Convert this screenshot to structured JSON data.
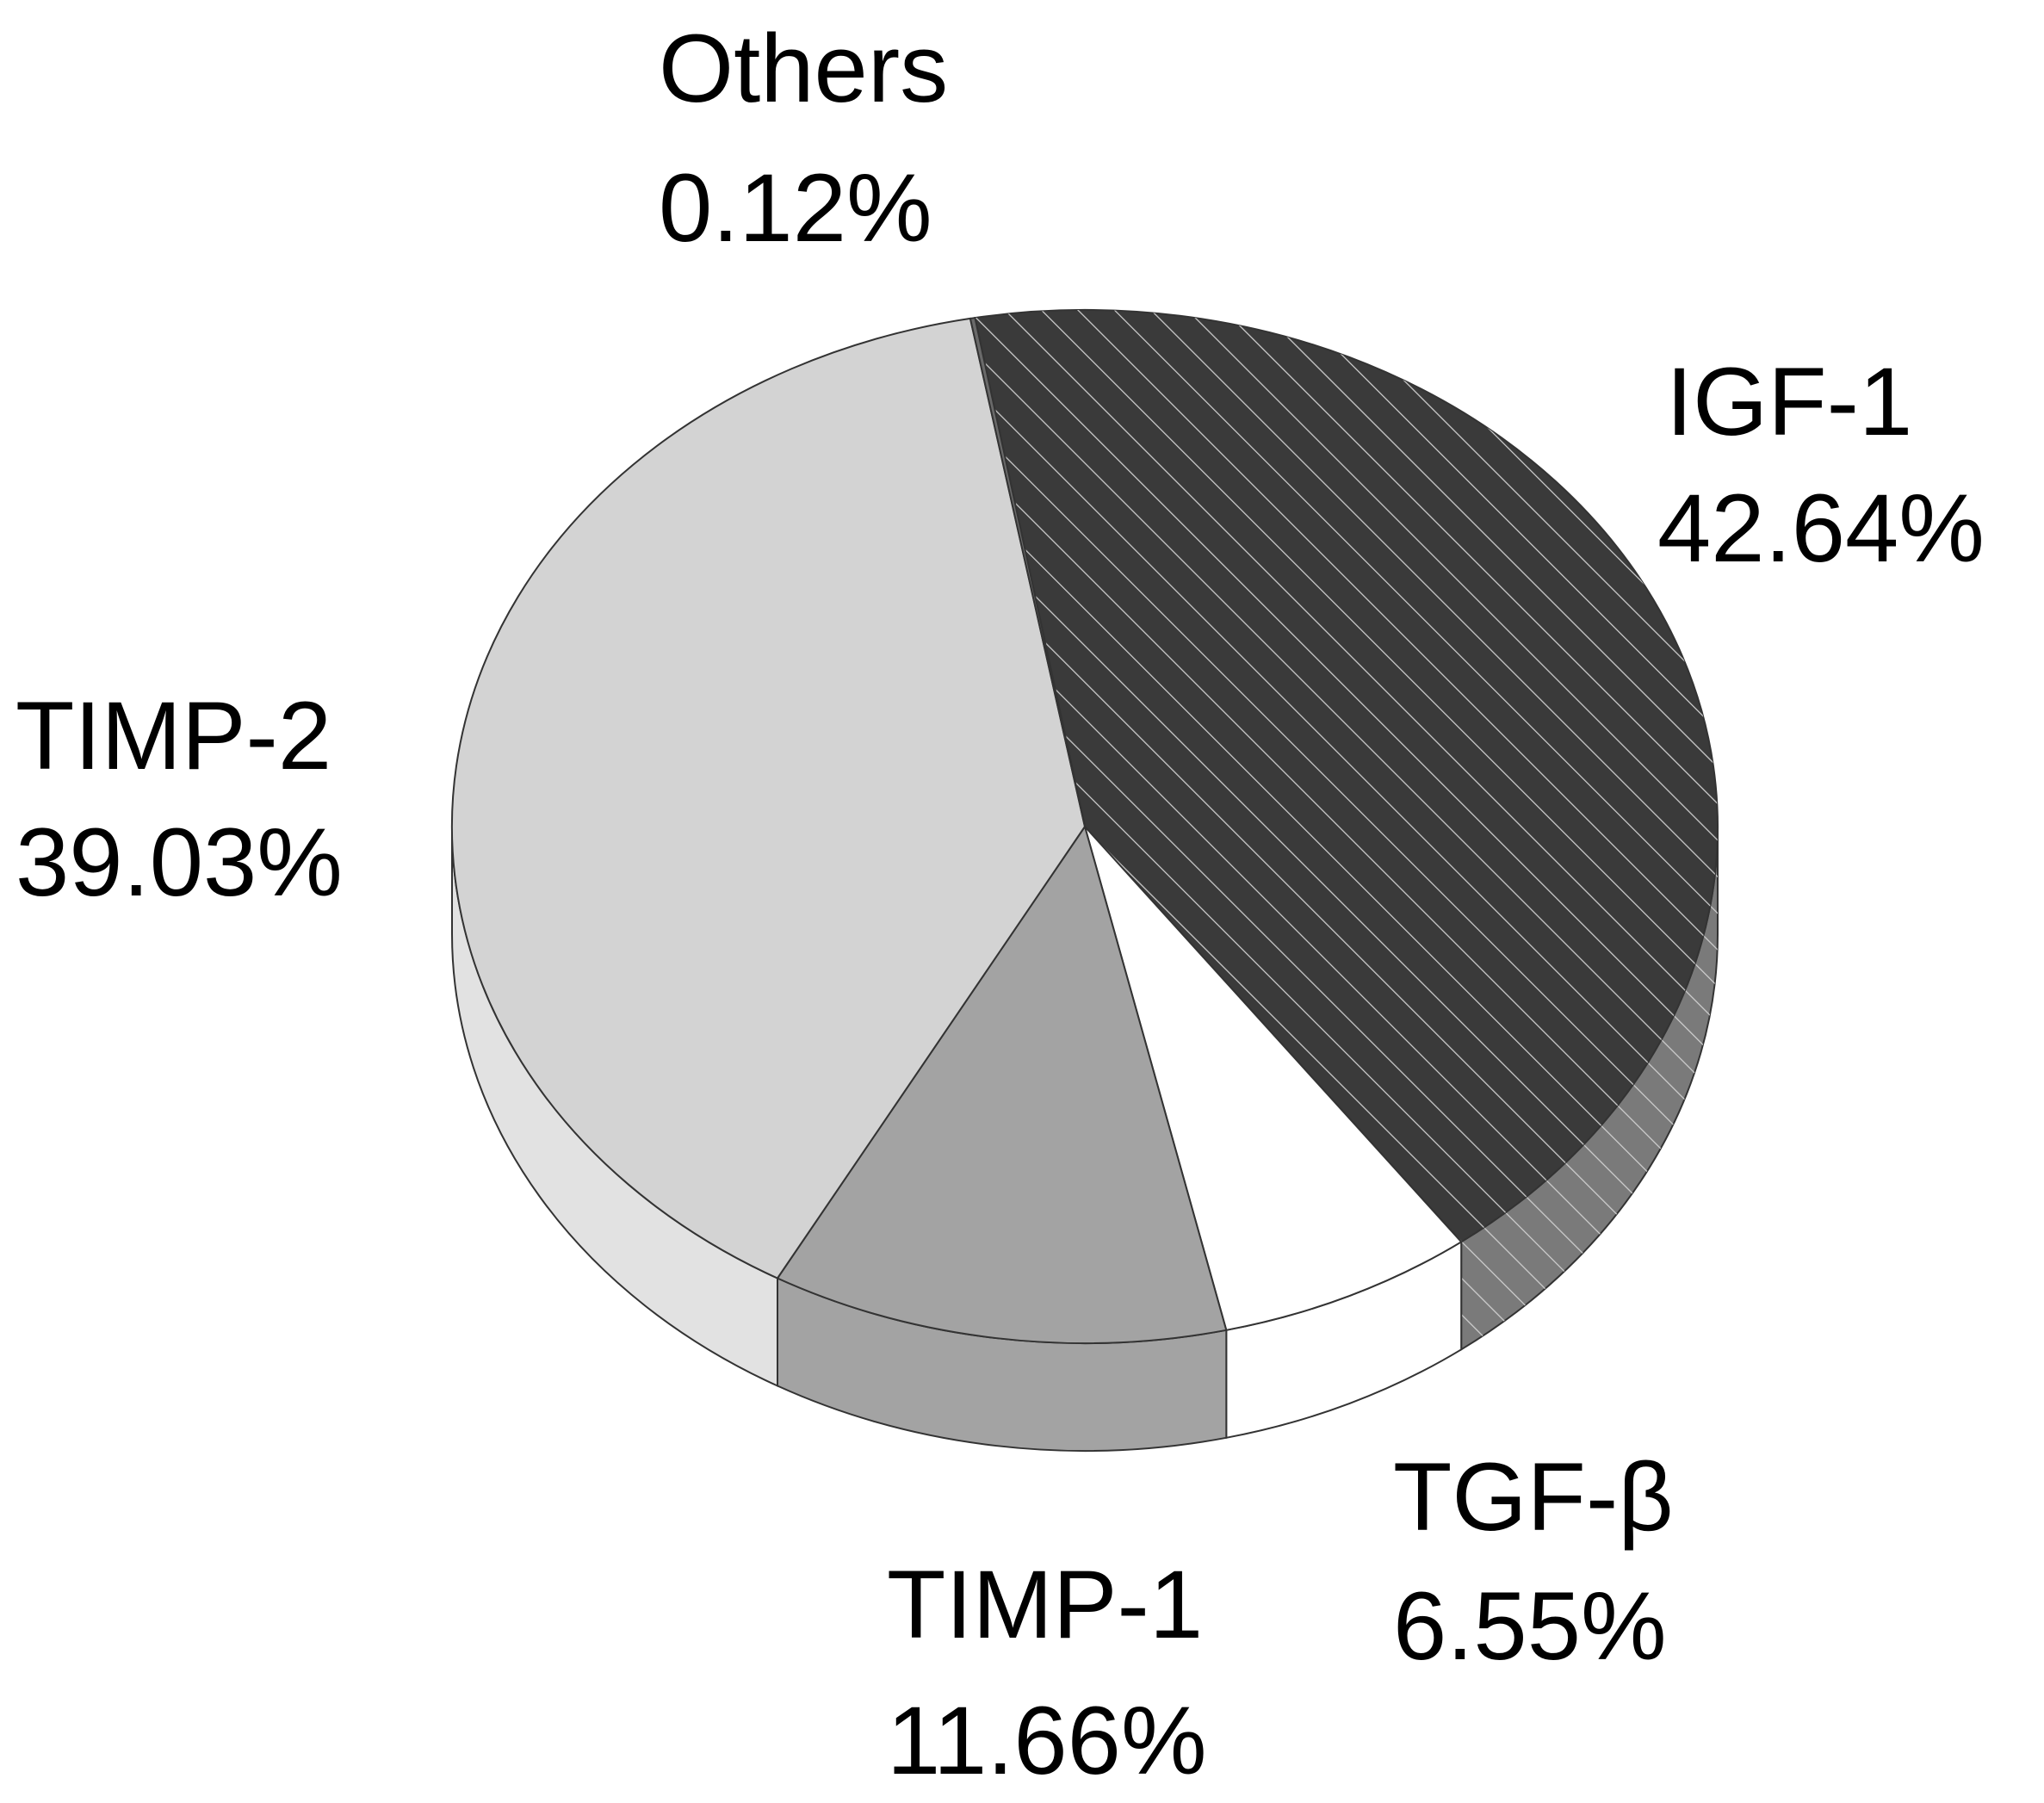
{
  "chart_data": {
    "type": "pie",
    "style": "3d",
    "title": "",
    "slices": [
      {
        "label": "IGF-1",
        "value": 42.64,
        "value_label": "42.64%",
        "color": "#3a3a3a",
        "side_color": "#7a7a7a",
        "hatch": true
      },
      {
        "label": "TGF-β",
        "value": 6.55,
        "value_label": "6.55%",
        "color": "#ffffff",
        "side_color": "#ffffff",
        "hatch": false
      },
      {
        "label": "TIMP-1",
        "value": 11.66,
        "value_label": "11.66%",
        "color": "#a3a3a3",
        "side_color": "#a3a3a3",
        "hatch": false
      },
      {
        "label": "TIMP-2",
        "value": 39.03,
        "value_label": "39.03%",
        "color": "#d3d3d3",
        "side_color": "#e2e2e2",
        "hatch": false
      },
      {
        "label": "Others",
        "value": 0.12,
        "value_label": "0.12%",
        "color": "#6a6a6a",
        "side_color": "#6a6a6a",
        "hatch": false
      }
    ]
  }
}
